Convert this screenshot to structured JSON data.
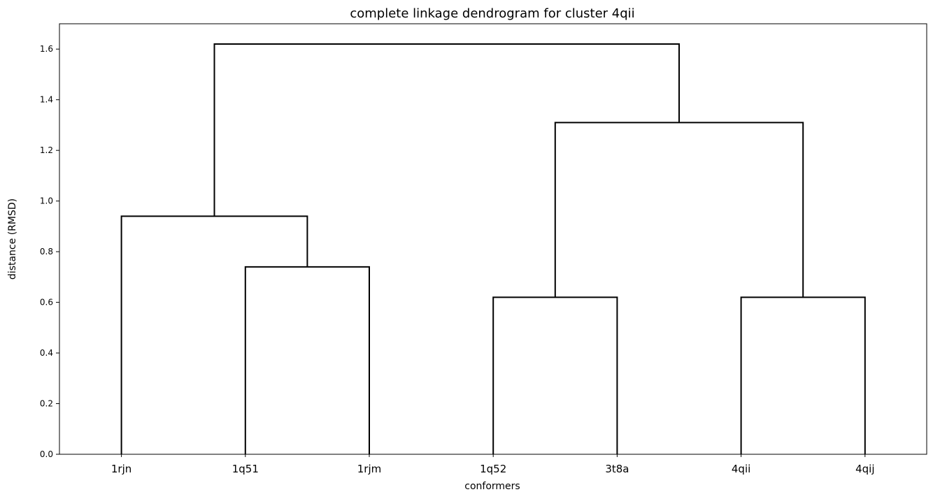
{
  "chart_data": {
    "type": "dendrogram",
    "title": "complete linkage dendrogram for cluster 4qii",
    "xlabel": "conformers",
    "ylabel": "distance (RMSD)",
    "leaves": [
      "1rjn",
      "1q51",
      "1rjm",
      "1q52",
      "3t8a",
      "4qii",
      "4qij"
    ],
    "ylim": [
      0,
      1.7
    ],
    "yticks": [
      "0.0",
      "0.2",
      "0.4",
      "0.6",
      "0.8",
      "1.0",
      "1.2",
      "1.4",
      "1.6"
    ],
    "merges": [
      {
        "left": "1q51",
        "right": "1rjm",
        "distance": 0.74
      },
      {
        "left": "1rjn",
        "right": "1q51+1rjm",
        "distance": 0.94
      },
      {
        "left": "1q52",
        "right": "3t8a",
        "distance": 0.62
      },
      {
        "left": "4qii",
        "right": "4qij",
        "distance": 0.62
      },
      {
        "left": "1q52+3t8a",
        "right": "4qii+4qij",
        "distance": 1.31
      },
      {
        "left": "1rjn+1q51+1rjm",
        "right": "1q52+3t8a+4qii+4qij",
        "distance": 1.62
      }
    ],
    "grid": false,
    "line_color": "#000000"
  }
}
